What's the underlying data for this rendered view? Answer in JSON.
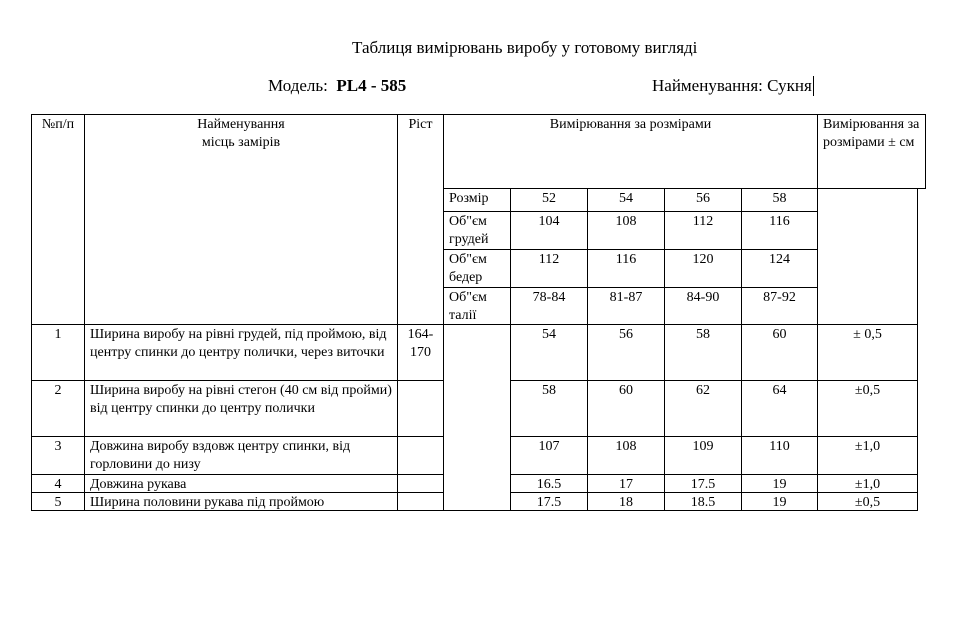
{
  "document": {
    "title": "Таблиця вимірювань виробу у готовому вигляді",
    "model_label": "Модель:",
    "model_value": "PL4 - 585",
    "product_label": "Найменування:",
    "product_value": "Сукня"
  },
  "table": {
    "headers": {
      "number": "№п/п",
      "name": "Найменування місць замірів",
      "height": "Ріст",
      "sizes": "Вимірювання за розмірами",
      "tolerance": "Вимірювання за розмірами ± см"
    },
    "size_rows": [
      {
        "label": "Розмір",
        "values": [
          "52",
          "54",
          "56",
          "58"
        ]
      },
      {
        "label": "Об\"єм грудей",
        "values": [
          "104",
          "108",
          "112",
          "116"
        ]
      },
      {
        "label": "Об\"єм бедер",
        "values": [
          "112",
          "116",
          "120",
          "124"
        ]
      },
      {
        "label": "Об\"єм талії",
        "values": [
          "78-84",
          "81-87",
          "84-90",
          "87-92"
        ]
      }
    ],
    "rows": [
      {
        "number": "1",
        "name": "Ширина виробу на рівні грудей, під проймою, від центру спинки до центру полички, через виточки",
        "height": "164-170",
        "values": [
          "54",
          "56",
          "58",
          "60"
        ],
        "tolerance": "± 0,5"
      },
      {
        "number": "2",
        "name": "Ширина виробу на рівні стегон (40 см від пройми) від центру спинки до центру полички",
        "height": "",
        "values": [
          "58",
          "60",
          "62",
          "64"
        ],
        "tolerance": "±0,5"
      },
      {
        "number": "3",
        "name": "Довжина виробу вздовж центру спинки, від горловини до низу",
        "height": "",
        "values": [
          "107",
          "108",
          "109",
          "110"
        ],
        "tolerance": "±1,0"
      },
      {
        "number": "4",
        "name": "Довжина рукава",
        "height": "",
        "values": [
          "16.5",
          "17",
          "17.5",
          "19"
        ],
        "tolerance": "±1,0"
      },
      {
        "number": "5",
        "name": "Ширина половини рукава під проймою",
        "height": "",
        "values": [
          "17.5",
          "18",
          "18.5",
          "19"
        ],
        "tolerance": "±0,5"
      }
    ]
  }
}
